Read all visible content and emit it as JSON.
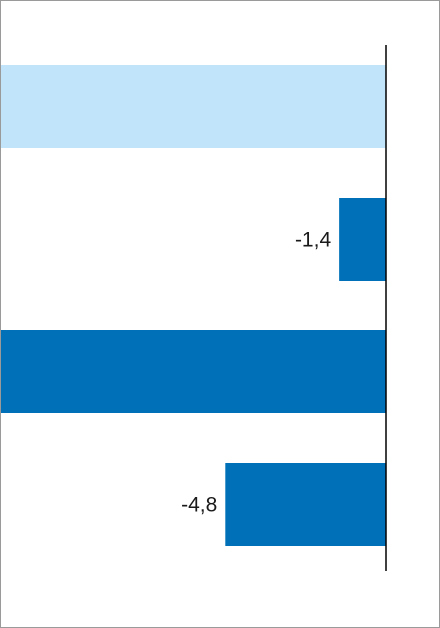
{
  "chart_data": {
    "type": "bar",
    "orientation": "horizontal",
    "categories": [
      "",
      "",
      "",
      ""
    ],
    "values": [
      -11.5,
      -1.4,
      -11.5,
      -4.8
    ],
    "data_labels": [
      "",
      "-1,4",
      "",
      "-4,8"
    ],
    "xlim": [
      -11.5,
      0
    ],
    "grid": false,
    "legend": "none",
    "colors": {
      "highlight": "#c2e4fa",
      "bar": "#0070b8",
      "axis": "#000000"
    },
    "bar_colors": [
      "#c2e4fa",
      "#0070b8",
      "#0070b8",
      "#0070b8"
    ],
    "note": ""
  }
}
